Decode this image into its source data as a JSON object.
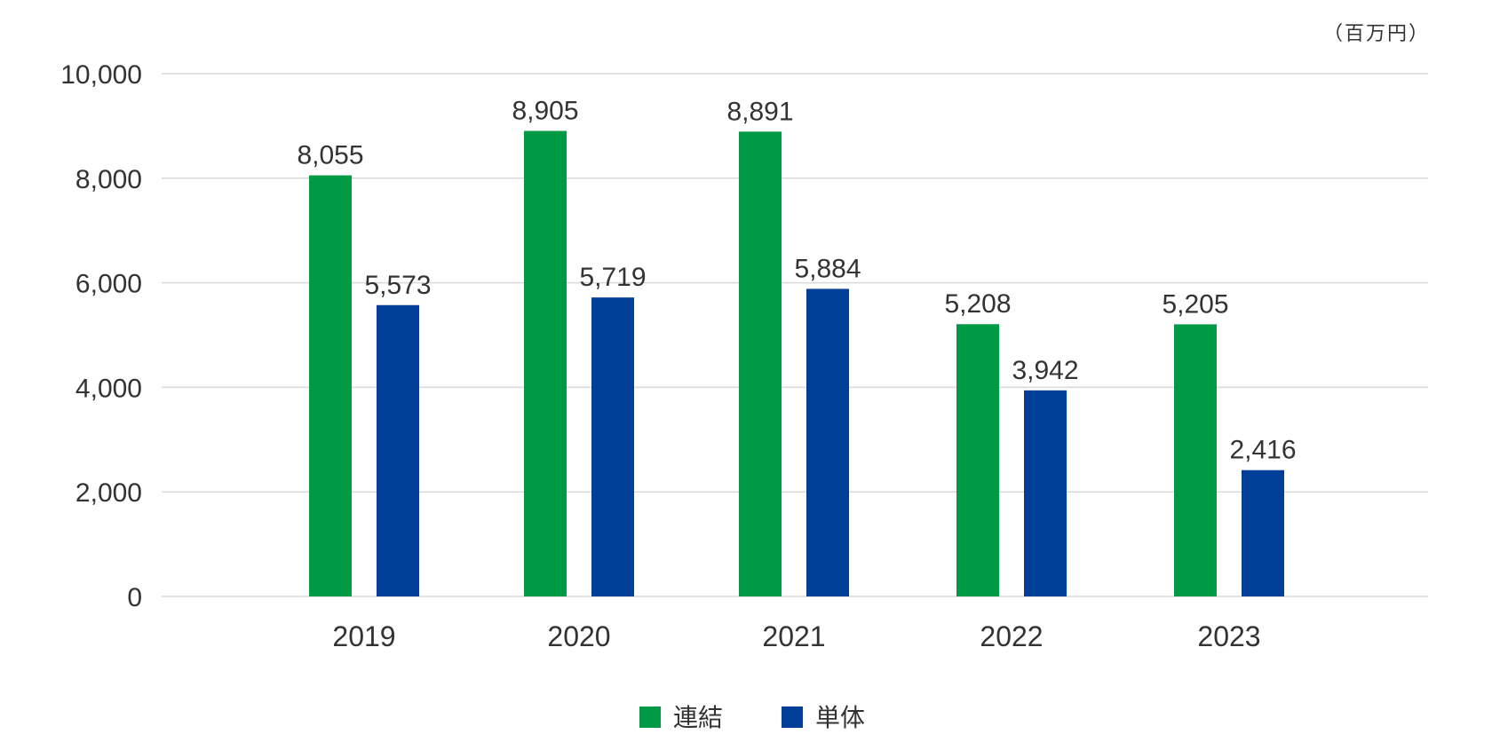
{
  "chart_data": {
    "type": "bar",
    "unit_label": "（百万円）",
    "categories": [
      "2019",
      "2020",
      "2021",
      "2022",
      "2023"
    ],
    "series": [
      {
        "name": "連結",
        "color": "#009944",
        "values": [
          8055,
          8905,
          8891,
          5208,
          5205
        ]
      },
      {
        "name": "単体",
        "color": "#003f98",
        "values": [
          5573,
          5719,
          5884,
          3942,
          2416
        ]
      }
    ],
    "value_labels": [
      [
        "8,055",
        "8,905",
        "8,891",
        "5,208",
        "5,205"
      ],
      [
        "5,573",
        "5,719",
        "5,884",
        "3,942",
        "2,416"
      ]
    ],
    "y_ticks": [
      "0",
      "2,000",
      "4,000",
      "6,000",
      "8,000",
      "10,000"
    ],
    "y_tick_values": [
      0,
      2000,
      4000,
      6000,
      8000,
      10000
    ],
    "ylim": [
      0,
      10000
    ],
    "grid": true,
    "legend_position": "bottom-center"
  }
}
